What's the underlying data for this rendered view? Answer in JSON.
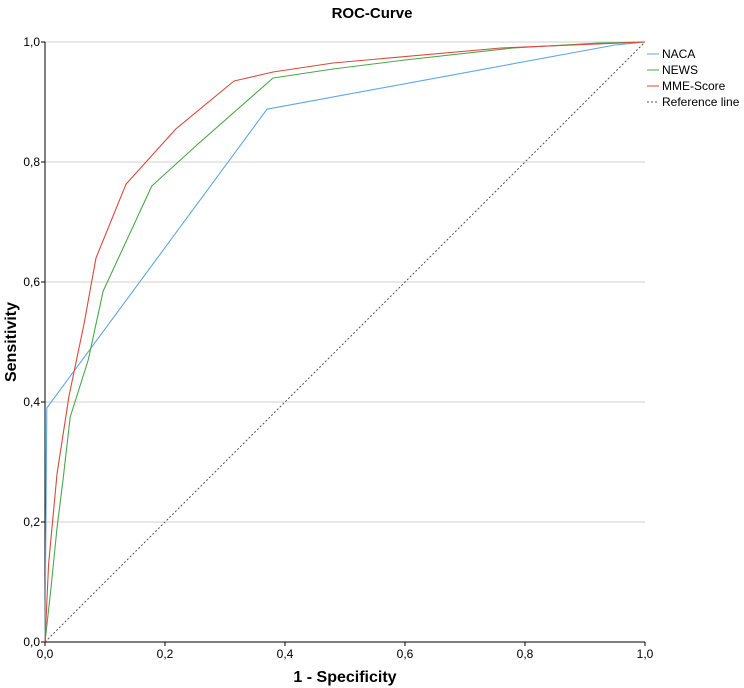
{
  "chart_data": {
    "type": "line",
    "title": "ROC-Curve",
    "xlabel": "1 - Specificity",
    "ylabel": "Sensitivity",
    "xlim": [
      0,
      1
    ],
    "ylim": [
      0,
      1
    ],
    "x_ticks": [
      0,
      0.2,
      0.4,
      0.6,
      0.8,
      1.0
    ],
    "y_ticks": [
      0,
      0.2,
      0.4,
      0.6,
      0.8,
      1.0
    ],
    "x_tick_labels": [
      "0,0",
      "0,2",
      "0,4",
      "0,6",
      "0,8",
      "1,0"
    ],
    "y_tick_labels": [
      "0,0",
      "0,2",
      "0,4",
      "0,6",
      "0,8",
      "1,0"
    ],
    "grid": "horizontal",
    "legend_position": "right",
    "series": [
      {
        "name": "NACA",
        "color": "#5fa8e8",
        "dash": "solid",
        "points": [
          [
            0,
            0
          ],
          [
            0.003,
            0.39
          ],
          [
            0.37,
            0.888
          ],
          [
            0.95,
            0.995
          ],
          [
            1,
            1
          ]
        ]
      },
      {
        "name": "NEWS",
        "color": "#4aa84a",
        "dash": "solid",
        "points": [
          [
            0,
            0
          ],
          [
            0.01,
            0.09
          ],
          [
            0.02,
            0.19
          ],
          [
            0.03,
            0.27
          ],
          [
            0.042,
            0.375
          ],
          [
            0.072,
            0.47
          ],
          [
            0.097,
            0.585
          ],
          [
            0.178,
            0.76
          ],
          [
            0.255,
            0.83
          ],
          [
            0.38,
            0.94
          ],
          [
            0.48,
            0.955
          ],
          [
            0.6,
            0.97
          ],
          [
            0.78,
            0.99
          ],
          [
            0.92,
            0.998
          ],
          [
            1,
            1
          ]
        ]
      },
      {
        "name": "MME-Score",
        "color": "#d94a3c",
        "dash": "solid",
        "points": [
          [
            0,
            0
          ],
          [
            0.006,
            0.13
          ],
          [
            0.02,
            0.28
          ],
          [
            0.04,
            0.41
          ],
          [
            0.065,
            0.53
          ],
          [
            0.085,
            0.64
          ],
          [
            0.135,
            0.763
          ],
          [
            0.218,
            0.855
          ],
          [
            0.315,
            0.935
          ],
          [
            0.38,
            0.95
          ],
          [
            0.48,
            0.965
          ],
          [
            0.76,
            0.99
          ],
          [
            1,
            1
          ]
        ]
      },
      {
        "name": "Reference line",
        "color": "#555555",
        "dash": "dotted",
        "points": [
          [
            0,
            0
          ],
          [
            1,
            1
          ]
        ]
      }
    ]
  }
}
